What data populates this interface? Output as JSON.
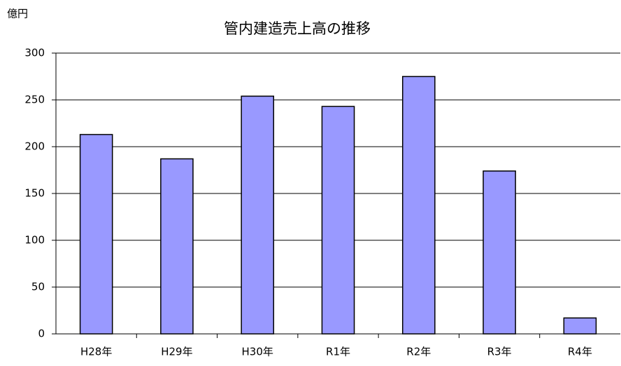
{
  "chart_data": {
    "type": "bar",
    "title": "管内建造売上高の推移",
    "y_label": "億円",
    "categories": [
      "H28年",
      "H29年",
      "H30年",
      "R1年",
      "R2年",
      "R3年",
      "R4年"
    ],
    "values": [
      213,
      187,
      254,
      243,
      275,
      174,
      17
    ],
    "color": "#9999ff",
    "ylim": [
      0,
      300
    ],
    "yticks": [
      0,
      50,
      100,
      150,
      200,
      250,
      300
    ],
    "grid": true
  }
}
